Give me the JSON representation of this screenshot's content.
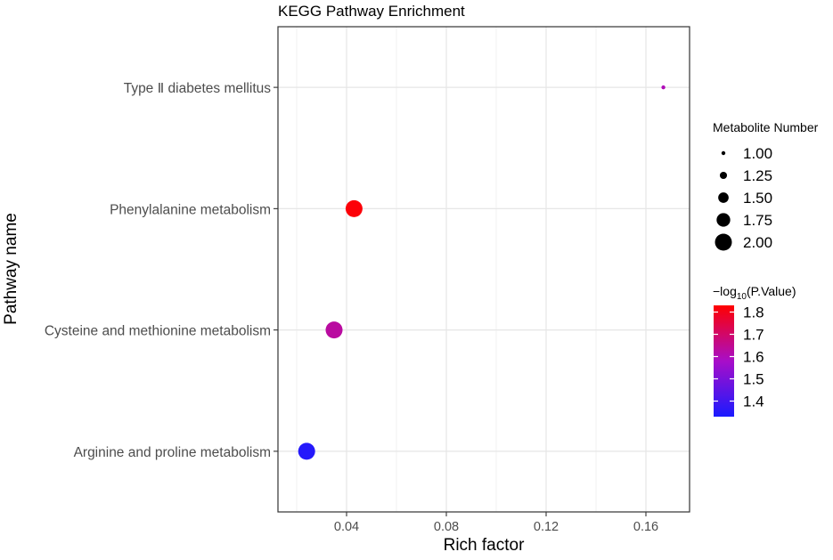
{
  "chart_data": {
    "type": "scatter",
    "title": "KEGG Pathway Enrichment",
    "xlabel": "Rich factor",
    "ylabel": "Pathway name",
    "xlim": [
      0.0125,
      0.1775
    ],
    "x_ticks": [
      0.04,
      0.08,
      0.12,
      0.16
    ],
    "x_tick_labels": [
      "0.04",
      "0.08",
      "0.12",
      "0.16"
    ],
    "categories": [
      "Type Ⅱ diabetes mellitus",
      "Phenylalanine metabolism",
      "Cysteine and methionine metabolism",
      "Arginine and proline metabolism"
    ],
    "points": [
      {
        "pathway": "Type Ⅱ diabetes mellitus",
        "rich_factor": 0.167,
        "metabolite_number": 1,
        "neg_log10_p": 1.6
      },
      {
        "pathway": "Phenylalanine metabolism",
        "rich_factor": 0.043,
        "metabolite_number": 2,
        "neg_log10_p": 1.82
      },
      {
        "pathway": "Cysteine and methionine metabolism",
        "rich_factor": 0.035,
        "metabolite_number": 2,
        "neg_log10_p": 1.63
      },
      {
        "pathway": "Arginine and proline metabolism",
        "rich_factor": 0.024,
        "metabolite_number": 2,
        "neg_log10_p": 1.35
      }
    ],
    "size_legend": {
      "title": "Metabolite Number",
      "values": [
        1.0,
        1.25,
        1.5,
        1.75,
        2.0
      ],
      "labels": [
        "1.00",
        "1.25",
        "1.50",
        "1.75",
        "2.00"
      ]
    },
    "color_legend": {
      "title_prefix": "−log",
      "title_subscript": "10",
      "title_suffix": "(P.Value)",
      "range": [
        1.33,
        1.83
      ],
      "ticks": [
        1.8,
        1.7,
        1.6,
        1.5,
        1.4
      ],
      "labels": [
        "1.8",
        "1.7",
        "1.6",
        "1.5",
        "1.4"
      ],
      "low_color": "#1a1aff",
      "high_color": "#ff0000"
    },
    "grid": true,
    "legend_position": "right"
  }
}
